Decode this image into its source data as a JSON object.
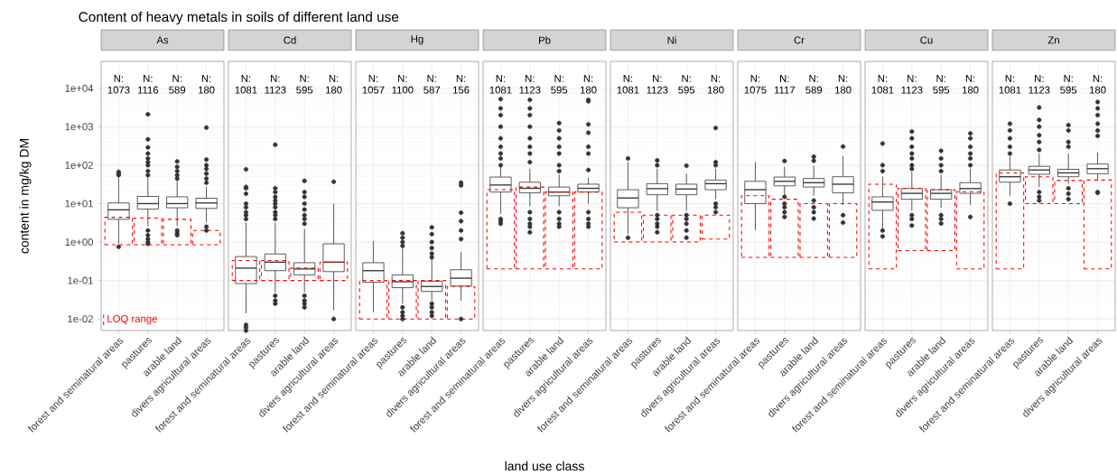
{
  "chart_data": [
    {
      "type": "box",
      "title": "Content of heavy metals in soils of different land use",
      "ylabel": "content in mg/kg DM",
      "subtitle": "As",
      "categories": [
        "forest and seminatural areas",
        "pastures",
        "arable land",
        "divers agricultural areas"
      ],
      "boxes": [
        {
          "low": 0.9,
          "q1": 3.9,
          "median": 6.9,
          "q3": 10.4,
          "high": 47,
          "outliers": [
            67,
            60,
            55,
            0.75
          ]
        },
        {
          "low": 2.6,
          "q1": 7.2,
          "median": 10,
          "q3": 15.4,
          "high": 47,
          "outliers": [
            2100,
            470,
            290,
            200,
            150,
            120,
            100,
            70,
            55,
            2.0,
            1.5,
            1.2,
            1.0,
            0.9
          ]
        },
        {
          "low": 2.6,
          "q1": 7.8,
          "median": 10,
          "q3": 15,
          "high": 39,
          "outliers": [
            125,
            90,
            70,
            55,
            45,
            2.0,
            1.7,
            1.5
          ]
        },
        {
          "low": 3.2,
          "q1": 7.5,
          "median": 10.4,
          "q3": 13.8,
          "high": 27,
          "outliers": [
            950,
            140,
            100,
            80,
            60,
            45,
            35,
            2.5,
            2.0
          ]
        }
      ],
      "series": [
        {
          "type": "bar",
          "name": "LOQ range",
          "color": "#ff0000",
          "line_style": "dashed",
          "base": [
            0.85,
            0.85,
            0.85,
            0.85
          ],
          "values": [
            3.55,
            3.35,
            3.05,
            1.15
          ]
        }
      ],
      "annotations": [
        "N: 1073",
        "N: 1116",
        "N: 589",
        "N: 180"
      ],
      "log": true,
      "ylim": [
        0.005,
        50000
      ],
      "grid": true,
      "yticks": [
        {
          "value": 0.01,
          "label": "1e-02"
        },
        {
          "value": 0.1,
          "label": "1e-01"
        },
        {
          "value": 1,
          "label": "1e+00"
        },
        {
          "value": 10,
          "label": "1e+01"
        },
        {
          "value": 100,
          "label": "1e+02"
        },
        {
          "value": 1000,
          "label": "1e+03"
        },
        {
          "value": 10000,
          "label": "1e+04"
        }
      ]
    },
    {
      "type": "box",
      "subtitle": "Cd",
      "tick_labels": "x",
      "categories": [
        "forest and seminatural areas",
        "pastures",
        "arable land",
        "divers agricultural areas"
      ],
      "boxes": [
        {
          "low": 0.014,
          "q1": 0.083,
          "median": 0.21,
          "q3": 0.42,
          "high": 3.2,
          "outliers": [
            78,
            27,
            25,
            18,
            10,
            8,
            6,
            5,
            4,
            0.007,
            0.006,
            0.005
          ]
        },
        {
          "low": 0.05,
          "q1": 0.18,
          "median": 0.3,
          "q3": 0.49,
          "high": 3.2,
          "outliers": [
            340,
            25,
            20,
            15,
            12,
            10,
            8,
            6,
            5,
            4,
            0.04,
            0.03,
            0.025
          ]
        },
        {
          "low": 0.05,
          "q1": 0.14,
          "median": 0.2,
          "q3": 0.29,
          "high": 2.2,
          "outliers": [
            39,
            20,
            15,
            10,
            7,
            5,
            4,
            3,
            0.04,
            0.03,
            0.025,
            0.02
          ]
        },
        {
          "low": 0.017,
          "q1": 0.17,
          "median": 0.3,
          "q3": 0.9,
          "high": 10,
          "outliers": [
            37,
            0.01
          ]
        }
      ],
      "series": [
        {
          "type": "bar",
          "color": "#ff0000",
          "line_style": "dashed",
          "base": [
            0.1,
            0.1,
            0.1,
            0.1
          ],
          "values": [
            0.23,
            0.23,
            0.11,
            0.2
          ]
        }
      ],
      "annotations": [
        "N: 1081",
        "N: 1123",
        "N: 595",
        "N: 180"
      ],
      "log": true,
      "ylim": [
        0.005,
        50000
      ],
      "grid": true,
      "yticks": [
        0.01,
        0.1,
        1,
        10,
        100,
        1000,
        10000
      ]
    },
    {
      "type": "box",
      "subtitle": "Hg",
      "tick_labels": "x",
      "categories": [
        "forest and seminatural areas",
        "pastures",
        "arable land",
        "divers agricultural areas"
      ],
      "boxes": [
        {
          "low": 0.015,
          "q1": 0.09,
          "median": 0.18,
          "q3": 0.29,
          "high": 1.07
        },
        {
          "low": 0.025,
          "q1": 0.065,
          "median": 0.093,
          "q3": 0.14,
          "high": 0.75,
          "outliers": [
            1.7,
            1.3,
            1.0,
            0.8,
            0.02,
            0.015,
            0.012,
            0.01
          ]
        },
        {
          "low": 0.03,
          "q1": 0.052,
          "median": 0.07,
          "q3": 0.096,
          "high": 0.37,
          "outliers": [
            2.4,
            1.6,
            1.0,
            0.7,
            0.5,
            0.4,
            0.025,
            0.02,
            0.015,
            0.012
          ]
        },
        {
          "low": 0.03,
          "q1": 0.072,
          "median": 0.115,
          "q3": 0.19,
          "high": 0.56,
          "outliers": [
            35,
            30,
            5.8,
            3.5,
            2,
            1.2,
            0.01
          ]
        }
      ],
      "series": [
        {
          "type": "bar",
          "color": "#ff0000",
          "line_style": "dashed",
          "base": [
            0.01,
            0.01,
            0.01,
            0.01
          ],
          "values": [
            0.09,
            0.09,
            0.09,
            0.06
          ]
        }
      ],
      "annotations": [
        "N: 1057",
        "N: 1100",
        "N: 587",
        "N: 156"
      ],
      "log": true,
      "ylim": [
        0.005,
        50000
      ],
      "grid": true,
      "yticks": [
        0.01,
        0.1,
        1,
        10,
        100,
        1000,
        10000
      ]
    },
    {
      "type": "box",
      "subtitle": "Pb",
      "tick_labels": "x",
      "xlabel": "land use class",
      "categories": [
        "forest and seminatural areas",
        "pastures",
        "arable land",
        "divers agricultural areas"
      ],
      "boxes": [
        {
          "low": 5.4,
          "q1": 20,
          "median": 30.5,
          "q3": 49,
          "high": 88,
          "outliers": [
            5200,
            3000,
            2000,
            1000,
            500,
            300,
            200,
            150,
            100,
            4,
            3.5,
            3
          ]
        },
        {
          "low": 8.5,
          "q1": 19,
          "median": 25,
          "q3": 36,
          "high": 80,
          "outliers": [
            5000,
            3000,
            2000,
            1000,
            500,
            300,
            200,
            120,
            6,
            4,
            3,
            2.5,
            1.8
          ]
        },
        {
          "low": 8.5,
          "q1": 16,
          "median": 20,
          "q3": 27,
          "high": 57,
          "outliers": [
            1240,
            800,
            500,
            300,
            200,
            100,
            70,
            6,
            4,
            3,
            2.5
          ]
        },
        {
          "low": 10,
          "q1": 20,
          "median": 25,
          "q3": 32,
          "high": 47,
          "outliers": [
            5000,
            4600,
            1150,
            700,
            300,
            200,
            75,
            6,
            4,
            3,
            2.5
          ]
        }
      ],
      "series": [
        {
          "type": "bar",
          "color": "#ff0000",
          "line_style": "dashed",
          "base": [
            0.2,
            0.2,
            0.2,
            0.2
          ],
          "values": [
            22.8,
            26.8,
            19.8,
            19.8
          ]
        }
      ],
      "annotations": [
        "N: 1081",
        "N: 1123",
        "N: 595",
        "N: 180"
      ],
      "log": true,
      "ylim": [
        0.005,
        50000
      ],
      "grid": true,
      "yticks": [
        0.01,
        0.1,
        1,
        10,
        100,
        1000,
        10000
      ]
    },
    {
      "type": "box",
      "subtitle": "Ni",
      "tick_labels": "x",
      "categories": [
        "forest and seminatural areas",
        "pastures",
        "arable land",
        "divers agricultural areas"
      ],
      "boxes": [
        {
          "low": 1.6,
          "q1": 7.8,
          "median": 14,
          "q3": 23,
          "high": 120,
          "outliers": [
            150,
            1.3
          ]
        },
        {
          "low": 6.5,
          "q1": 17,
          "median": 24.5,
          "q3": 33,
          "high": 81,
          "outliers": [
            133,
            100,
            5,
            4,
            3,
            2.5,
            1.8
          ]
        },
        {
          "low": 6.5,
          "q1": 17,
          "median": 24,
          "q3": 32,
          "high": 60,
          "outliers": [
            97,
            5,
            4,
            3,
            2,
            1.3
          ]
        },
        {
          "low": 13,
          "q1": 23,
          "median": 33,
          "q3": 41,
          "high": 81,
          "outliers": [
            930,
            120,
            100,
            10,
            8,
            6
          ]
        }
      ],
      "series": [
        {
          "type": "bar",
          "color": "#ff0000",
          "line_style": "dashed",
          "base": [
            1.0,
            1.0,
            1.0,
            1.2
          ],
          "values": [
            5.0,
            4.0,
            4.0,
            3.8
          ]
        }
      ],
      "annotations": [
        "N: 1081",
        "N: 1123",
        "N: 595",
        "N: 180"
      ],
      "log": true,
      "ylim": [
        0.005,
        50000
      ],
      "grid": true,
      "yticks": [
        0.01,
        0.1,
        1,
        10,
        100,
        1000,
        10000
      ]
    },
    {
      "type": "box",
      "subtitle": "Cr",
      "tick_labels": "x",
      "categories": [
        "forest and seminatural areas",
        "pastures",
        "arable land",
        "divers agricultural areas"
      ],
      "boxes": [
        {
          "low": 2.05,
          "q1": 10,
          "median": 23,
          "q3": 38,
          "high": 120
        },
        {
          "low": 16,
          "q1": 29,
          "median": 38,
          "q3": 49,
          "high": 90,
          "outliers": [
            128,
            15,
            10,
            8,
            6,
            4.5
          ]
        },
        {
          "low": 16,
          "q1": 27,
          "median": 35,
          "q3": 45,
          "high": 97,
          "outliers": [
            166,
            130,
            12,
            8,
            6,
            4.1
          ]
        },
        {
          "low": 9.3,
          "q1": 19,
          "median": 32,
          "q3": 50,
          "high": 171,
          "outliers": [
            305,
            5,
            3.2
          ]
        }
      ],
      "series": [
        {
          "type": "bar",
          "color": "#ff0000",
          "line_style": "dashed",
          "base": [
            0.4,
            0.4,
            0.4,
            0.4
          ],
          "values": [
            15.6,
            12.6,
            9.6,
            9.6
          ]
        }
      ],
      "annotations": [
        "N: 1075",
        "N: 1117",
        "N: 589",
        "N: 180"
      ],
      "log": true,
      "ylim": [
        0.005,
        50000
      ],
      "grid": true,
      "yticks": [
        0.01,
        0.1,
        1,
        10,
        100,
        1000,
        10000
      ]
    },
    {
      "type": "box",
      "subtitle": "Cu",
      "tick_labels": "x",
      "categories": [
        "forest and seminatural areas",
        "pastures",
        "arable land",
        "divers agricultural areas"
      ],
      "boxes": [
        {
          "low": 2.2,
          "q1": 6.7,
          "median": 11,
          "q3": 15,
          "high": 51,
          "outliers": [
            366,
            100,
            70,
            2,
            1.4
          ]
        },
        {
          "low": 6.5,
          "q1": 13,
          "median": 18.5,
          "q3": 24.6,
          "high": 67,
          "outliers": [
            750,
            500,
            300,
            200,
            150,
            100,
            80,
            5,
            4,
            2.7
          ]
        },
        {
          "low": 7.8,
          "q1": 13,
          "median": 18.5,
          "q3": 23,
          "high": 56,
          "outliers": [
            237,
            150,
            100,
            70,
            5,
            4,
            3.05
          ]
        },
        {
          "low": 9.3,
          "q1": 18.5,
          "median": 24.6,
          "q3": 35,
          "high": 81,
          "outliers": [
            670,
            500,
            300,
            200,
            150,
            100,
            4.5
          ]
        }
      ],
      "series": [
        {
          "type": "bar",
          "color": "#ff0000",
          "line_style": "dashed",
          "base": [
            0.2,
            0.6,
            0.6,
            0.2
          ],
          "values": [
            31.8,
            24.4,
            22.4,
            20.3
          ]
        }
      ],
      "annotations": [
        "N: 1081",
        "N: 1123",
        "N: 595",
        "N: 180"
      ],
      "log": true,
      "ylim": [
        0.005,
        50000
      ],
      "grid": true,
      "yticks": [
        0.01,
        0.1,
        1,
        10,
        100,
        1000,
        10000
      ]
    },
    {
      "type": "box",
      "subtitle": "Zn",
      "tick_labels": "x",
      "categories": [
        "forest and seminatural areas",
        "pastures",
        "arable land",
        "divers agricultural areas"
      ],
      "boxes": [
        {
          "low": 16,
          "q1": 36,
          "median": 50,
          "q3": 75,
          "high": 166,
          "outliers": [
            1200,
            800,
            500,
            300,
            200,
            10
          ]
        },
        {
          "low": 27,
          "q1": 58,
          "median": 75,
          "q3": 93,
          "high": 200,
          "outliers": [
            3160,
            1500,
            1000,
            600,
            400,
            250,
            20,
            15,
            12
          ]
        },
        {
          "low": 33,
          "q1": 50,
          "median": 63,
          "q3": 78,
          "high": 200,
          "outliers": [
            1100,
            800,
            400,
            300,
            25,
            18,
            13
          ]
        },
        {
          "low": 39,
          "q1": 60,
          "median": 81,
          "q3": 107,
          "high": 213,
          "outliers": [
            4400,
            3000,
            2000,
            1200,
            800,
            580,
            20,
            19
          ]
        }
      ],
      "series": [
        {
          "type": "bar",
          "color": "#ff0000",
          "line_style": "dashed",
          "base": [
            0.2,
            10,
            10,
            0.2
          ],
          "values": [
            62.8,
            40,
            30,
            40.8
          ]
        }
      ],
      "annotations": [
        "N: 1081",
        "N: 1123",
        "N: 595",
        "N: 180"
      ],
      "log": true,
      "ylim": [
        0.005,
        50000
      ],
      "grid": true,
      "yticks": [
        0.01,
        0.1,
        1,
        10,
        100,
        1000,
        10000
      ]
    }
  ]
}
